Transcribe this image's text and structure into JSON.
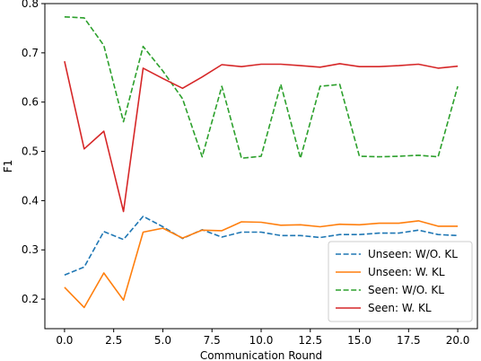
{
  "chart_data": {
    "type": "line",
    "xlabel": "Communication Round",
    "ylabel": "F1",
    "xlim": [
      -1,
      21
    ],
    "ylim": [
      0.14,
      0.8
    ],
    "xticks": [
      "0.0",
      "2.5",
      "5.0",
      "7.5",
      "10.0",
      "12.5",
      "15.0",
      "17.5",
      "20.0"
    ],
    "yticks": [
      "0.2",
      "0.3",
      "0.4",
      "0.5",
      "0.6",
      "0.7",
      "0.8"
    ],
    "grid": false,
    "legend_position": "lower-right",
    "x": [
      0,
      1,
      2,
      3,
      4,
      5,
      6,
      7,
      8,
      9,
      10,
      11,
      12,
      13,
      14,
      15,
      16,
      17,
      18,
      19,
      20
    ],
    "series": [
      {
        "name": "Unseen: W/O. KL",
        "color": "#1f77b4",
        "style": "dashed",
        "values": [
          0.249,
          0.265,
          0.337,
          0.321,
          0.368,
          0.347,
          0.323,
          0.341,
          0.326,
          0.336,
          0.336,
          0.329,
          0.329,
          0.325,
          0.331,
          0.331,
          0.334,
          0.334,
          0.34,
          0.331,
          0.329
        ]
      },
      {
        "name": "Unseen: W. KL",
        "color": "#ff7f0e",
        "style": "solid",
        "values": [
          0.224,
          0.183,
          0.253,
          0.198,
          0.336,
          0.344,
          0.324,
          0.34,
          0.339,
          0.357,
          0.356,
          0.35,
          0.351,
          0.347,
          0.352,
          0.351,
          0.354,
          0.354,
          0.359,
          0.348,
          0.348
        ]
      },
      {
        "name": "Seen: W/O. KL",
        "color": "#2ca02c",
        "style": "dashed",
        "values": [
          0.773,
          0.771,
          0.715,
          0.56,
          0.713,
          0.663,
          0.607,
          0.489,
          0.632,
          0.486,
          0.49,
          0.636,
          0.486,
          0.632,
          0.636,
          0.49,
          0.489,
          0.49,
          0.492,
          0.489,
          0.632
        ]
      },
      {
        "name": "Seen: W. KL",
        "color": "#d62728",
        "style": "solid",
        "values": [
          0.683,
          0.505,
          0.541,
          0.378,
          0.669,
          0.648,
          0.628,
          0.651,
          0.676,
          0.672,
          0.677,
          0.677,
          0.674,
          0.671,
          0.678,
          0.672,
          0.672,
          0.674,
          0.677,
          0.669,
          0.673
        ]
      }
    ]
  }
}
